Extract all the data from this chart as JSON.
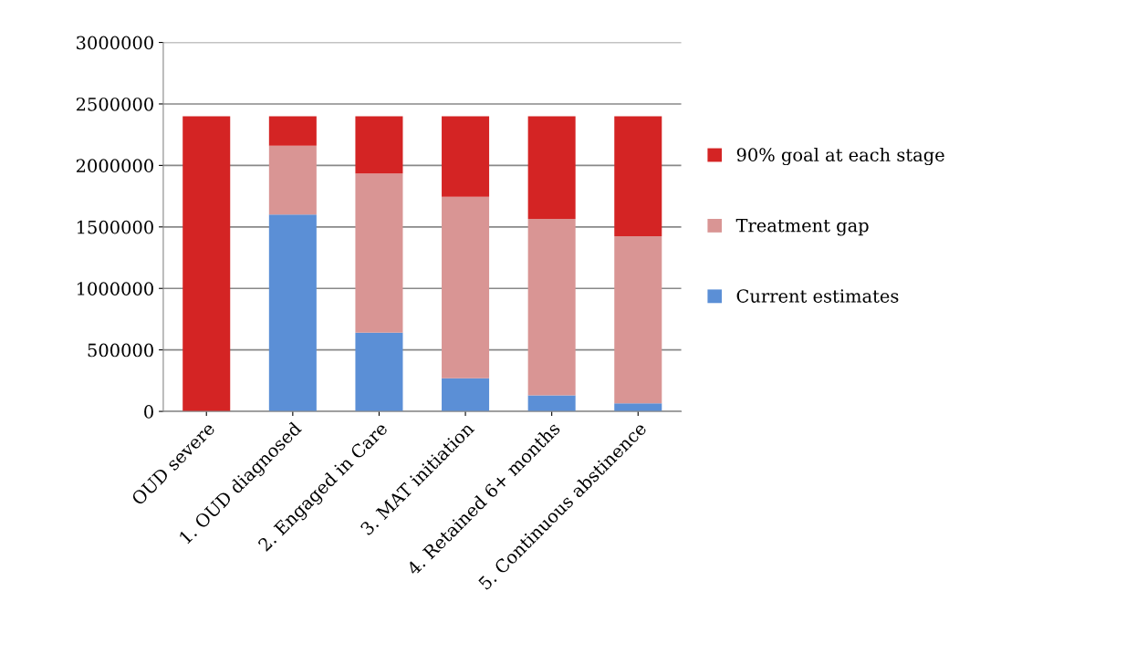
{
  "chart_data": {
    "type": "bar",
    "stacked": true,
    "categories": [
      "OUD severe",
      "1. OUD diagnosed",
      "2. Engaged in Care",
      "3. MAT initiation",
      "4. Retained 6+ months",
      "5. Continuous abstinence"
    ],
    "series": [
      {
        "name": "Current estimates",
        "color": "#5b8fd6",
        "values": [
          0,
          1600000,
          640000,
          270000,
          130000,
          65000
        ]
      },
      {
        "name": "Treatment gap",
        "color": "#d99594",
        "values": [
          0,
          560000,
          1295000,
          1475000,
          1435000,
          1360000
        ]
      },
      {
        "name": "90% goal at each stage",
        "color": "#d42424",
        "values": [
          2400000,
          240000,
          465000,
          655000,
          835000,
          975000
        ]
      }
    ],
    "ylim": [
      0,
      3000000
    ],
    "yticks": [
      0,
      500000,
      1000000,
      1500000,
      2000000,
      2500000,
      3000000
    ],
    "grid": "y",
    "legend": "right"
  }
}
